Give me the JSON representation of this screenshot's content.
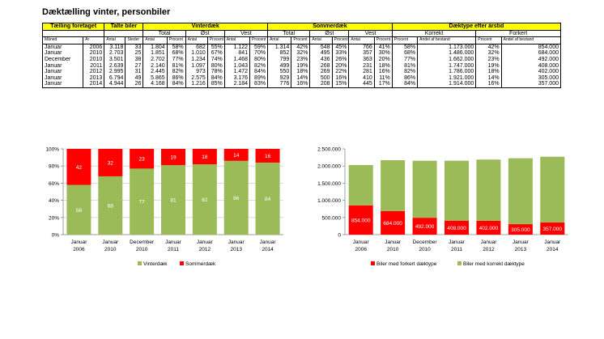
{
  "title": "Dæktælling vinter, personbiler",
  "table": {
    "group_headers": [
      "Tælling foretaget",
      "Talte biler",
      "Vinterdæk",
      "Sommerdæk",
      "Dæktype efter årstid"
    ],
    "sub_headers": [
      "Total",
      "Øst",
      "Vest",
      "Total",
      "Øst",
      "Vest",
      "Korrekt",
      "Forkert"
    ],
    "col_headers": [
      "Måned",
      "År",
      "Antal",
      "Steder",
      "Antal",
      "Procent",
      "Antal",
      "Procent",
      "Antal",
      "Procent",
      "Antal",
      "Procent",
      "Antal",
      "Procent",
      "Antal",
      "Procent",
      "Procent",
      "Andel af bestand",
      "Procent",
      "Andel af bestand"
    ],
    "rows": [
      [
        "Januar",
        "2006",
        "3.118",
        "33",
        "1.804",
        "58%",
        "682",
        "55%",
        "1.122",
        "59%",
        "1.314",
        "42%",
        "548",
        "45%",
        "766",
        "41%",
        "58%",
        "1.173.000",
        "42%",
        "854.000"
      ],
      [
        "Januar",
        "2010",
        "2.703",
        "25",
        "1.851",
        "68%",
        "1.010",
        "67%",
        "841",
        "70%",
        "852",
        "32%",
        "495",
        "33%",
        "357",
        "30%",
        "68%",
        "1.486.000",
        "32%",
        "684.000"
      ],
      [
        "December",
        "2010",
        "3.501",
        "38",
        "2.702",
        "77%",
        "1.234",
        "74%",
        "1.468",
        "80%",
        "799",
        "23%",
        "436",
        "26%",
        "363",
        "20%",
        "77%",
        "1.662.000",
        "23%",
        "492.000"
      ],
      [
        "Januar",
        "2011",
        "2.639",
        "27",
        "2.140",
        "81%",
        "1.097",
        "80%",
        "1.043",
        "82%",
        "499",
        "19%",
        "268",
        "20%",
        "231",
        "18%",
        "81%",
        "1.747.000",
        "19%",
        "408.000"
      ],
      [
        "Januar",
        "2012",
        "2.995",
        "31",
        "2.445",
        "82%",
        "973",
        "78%",
        "1.472",
        "84%",
        "550",
        "18%",
        "269",
        "22%",
        "281",
        "16%",
        "82%",
        "1.786.000",
        "18%",
        "402.000"
      ],
      [
        "Januar",
        "2013",
        "6.794",
        "49",
        "5.865",
        "86%",
        "2.575",
        "84%",
        "3.176",
        "89%",
        "929",
        "14%",
        "500",
        "16%",
        "410",
        "11%",
        "86%",
        "1.921.000",
        "14%",
        "305.000"
      ],
      [
        "Januar",
        "2014",
        "4.944",
        "26",
        "4.168",
        "84%",
        "1.216",
        "85%",
        "2.184",
        "83%",
        "776",
        "16%",
        "208",
        "15%",
        "445",
        "17%",
        "84%",
        "1.914.000",
        "16%",
        "357.000"
      ]
    ]
  },
  "chart_data": [
    {
      "type": "bar",
      "stacked": true,
      "categories": [
        [
          "Januar",
          "2006"
        ],
        [
          "Januar",
          "2010"
        ],
        [
          "December",
          "2010"
        ],
        [
          "Januar",
          "2011"
        ],
        [
          "Januar",
          "2012"
        ],
        [
          "Januar",
          "2013"
        ],
        [
          "Januar",
          "2014"
        ]
      ],
      "series": [
        {
          "name": "Vinterdæk",
          "values": [
            58,
            68,
            77,
            81,
            82,
            86,
            84
          ],
          "color": "#9bbb59"
        },
        {
          "name": "Sommerdæk",
          "values": [
            42,
            32,
            23,
            19,
            18,
            14,
            16
          ],
          "color": "#ff0000"
        }
      ],
      "yticks": [
        "0%",
        "20%",
        "40%",
        "60%",
        "80%",
        "100%"
      ],
      "ylim": [
        0,
        100
      ],
      "grid": true,
      "legend": "bottom"
    },
    {
      "type": "bar",
      "stacked": true,
      "categories": [
        [
          "Januar",
          "2006"
        ],
        [
          "Januar",
          "2010"
        ],
        [
          "December",
          "2010"
        ],
        [
          "Januar",
          "2011"
        ],
        [
          "Januar",
          "2012"
        ],
        [
          "Januar",
          "2013"
        ],
        [
          "Januar",
          "2014"
        ]
      ],
      "series": [
        {
          "name": "Biler med forkert dæktype",
          "values": [
            854000,
            684000,
            492000,
            408000,
            402000,
            305000,
            357000
          ],
          "labels": [
            "854.000",
            "684.000",
            "492.000",
            "408.000",
            "402.000",
            "305.000",
            "357.000"
          ],
          "color": "#ff0000"
        },
        {
          "name": "Biler med korrekt dæktype",
          "values": [
            1173000,
            1486000,
            1662000,
            1747000,
            1786000,
            1921000,
            1914000
          ],
          "color": "#9bbb59"
        }
      ],
      "yticks": [
        "0",
        "500.000",
        "1.000.000",
        "1.500.000",
        "2.000.000",
        "2.500.000"
      ],
      "ylim": [
        0,
        2500000
      ],
      "grid": false,
      "legend": "bottom"
    }
  ]
}
